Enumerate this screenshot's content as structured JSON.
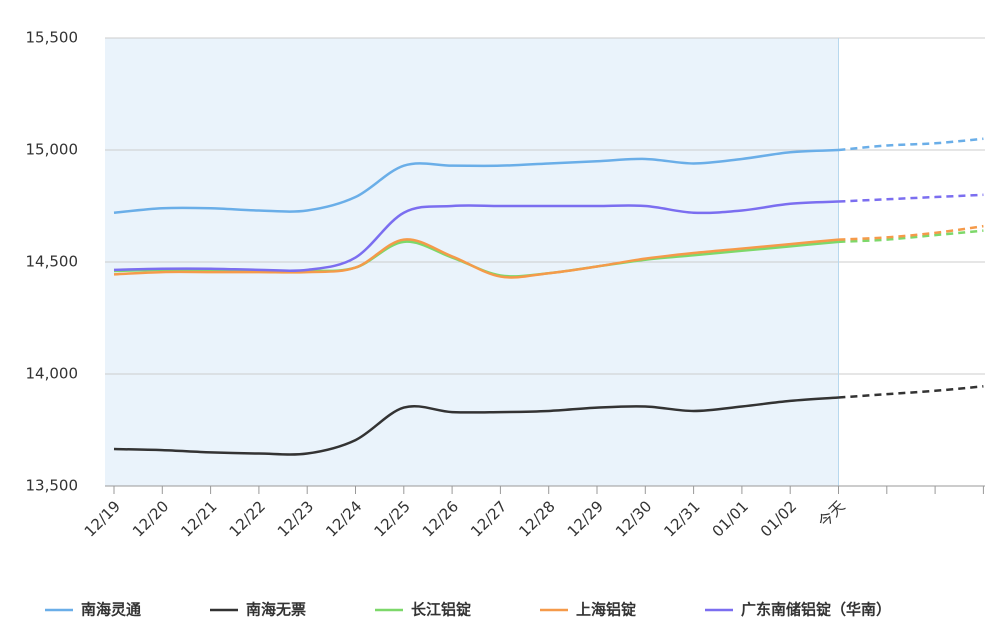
{
  "chart_data": {
    "type": "line",
    "categories": [
      "12/19",
      "12/20",
      "12/21",
      "12/22",
      "12/23",
      "12/24",
      "12/25",
      "12/26",
      "12/27",
      "12/28",
      "12/29",
      "12/30",
      "12/31",
      "01/01",
      "01/02",
      "今天",
      null,
      null,
      null
    ],
    "series": [
      {
        "name": "南海灵通",
        "color": "#6aaee8",
        "values": [
          14720,
          14740,
          14740,
          14730,
          14730,
          14790,
          14930,
          14930,
          14930,
          14940,
          14950,
          14960,
          14940,
          14960,
          14990,
          15000,
          15020,
          15030,
          15050
        ]
      },
      {
        "name": "南海无票",
        "color": "#333333",
        "values": [
          13665,
          13660,
          13650,
          13645,
          13645,
          13705,
          13850,
          13830,
          13830,
          13835,
          13850,
          13855,
          13835,
          13855,
          13880,
          13895,
          13910,
          13925,
          13945
        ]
      },
      {
        "name": "长江铝锭",
        "color": "#7dd86a",
        "values": [
          14460,
          14465,
          14465,
          14460,
          14460,
          14475,
          14590,
          14520,
          14440,
          14450,
          14480,
          14510,
          14530,
          14550,
          14570,
          14590,
          14600,
          14620,
          14640
        ]
      },
      {
        "name": "上海铝锭",
        "color": "#f59a4a",
        "values": [
          14445,
          14455,
          14455,
          14455,
          14455,
          14475,
          14600,
          14525,
          14435,
          14450,
          14480,
          14515,
          14540,
          14560,
          14580,
          14600,
          14610,
          14630,
          14660
        ]
      },
      {
        "name": "广东南储铝锭（华南）",
        "color": "#7b6ef0",
        "values": [
          14465,
          14470,
          14470,
          14465,
          14465,
          14520,
          14720,
          14750,
          14750,
          14750,
          14750,
          14750,
          14720,
          14730,
          14760,
          14770,
          14780,
          14790,
          14800
        ]
      }
    ],
    "ylim": [
      13500,
      15500
    ],
    "yticks": [
      {
        "value": 13500,
        "label": "13,500"
      },
      {
        "value": 14000,
        "label": "14,000"
      },
      {
        "value": 14500,
        "label": "14,500"
      },
      {
        "value": 15000,
        "label": "15,000"
      },
      {
        "value": 15500,
        "label": "15,500"
      }
    ],
    "grid": true
  }
}
